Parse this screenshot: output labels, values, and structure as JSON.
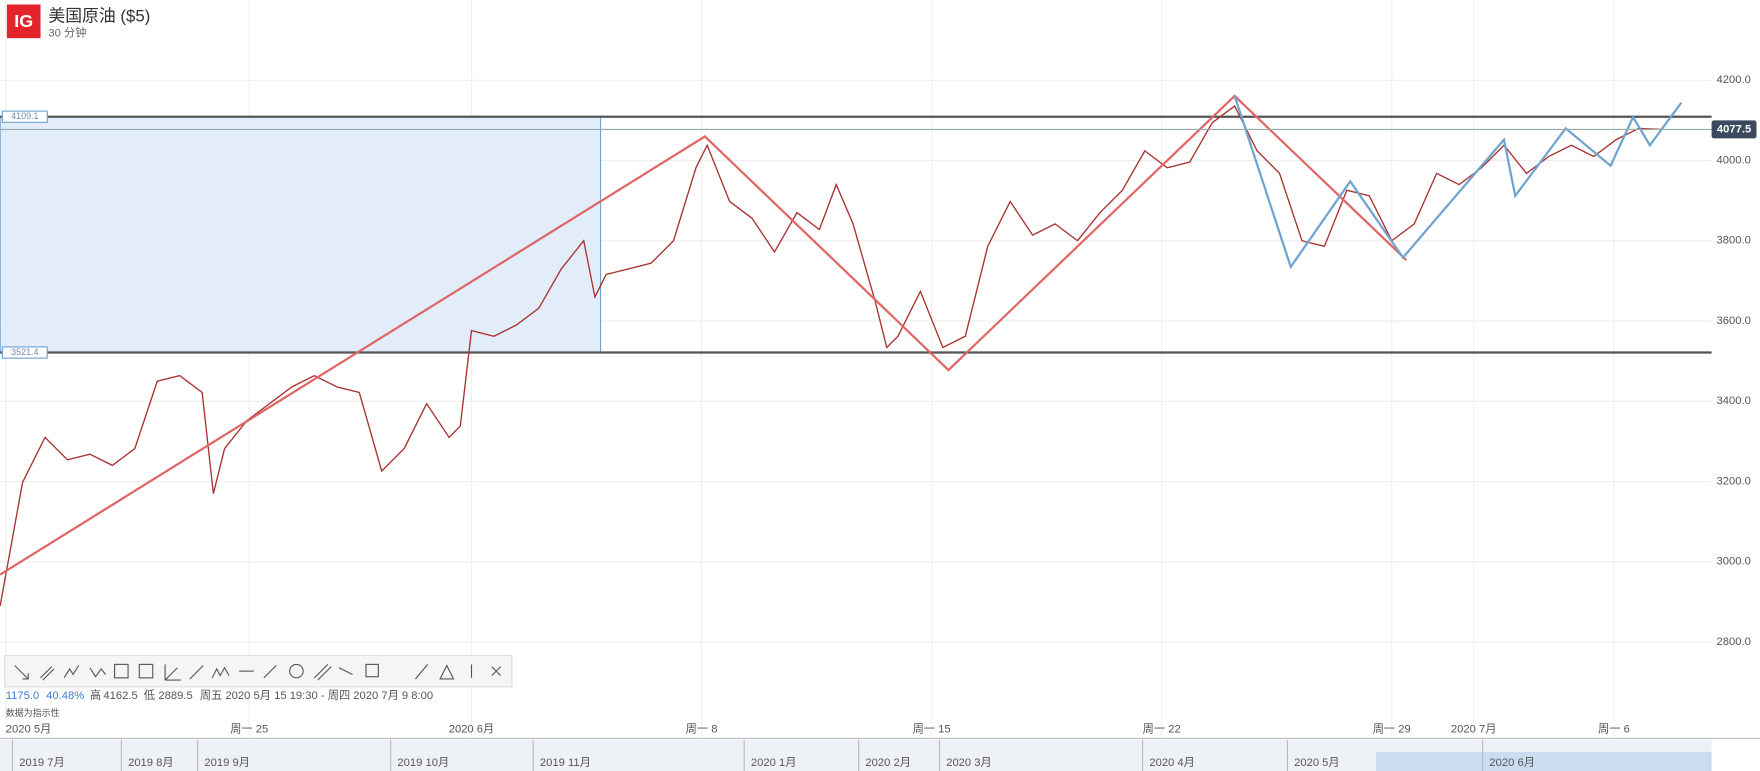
{
  "header": {
    "logo": "IG",
    "title": "美国原油 ($5)",
    "subtitle": "30 分钟"
  },
  "info": {
    "change": "1175.0",
    "change_pct": "40.48%",
    "high_label": "高",
    "high": "4162.5",
    "low_label": "低",
    "low": "2889.5",
    "range": "周五 2020 5月 15 19:30 - 周四 2020 7月 9 8:00",
    "note": "数据为指示性"
  },
  "navigator": [
    "2019 7月",
    "2019 8月",
    "2019 9月",
    "2019 10月",
    "2019 11月",
    "2020 1月",
    "2020 2月",
    "2020 3月",
    "2020 4月",
    "2020 5月",
    "2020 6月"
  ],
  "chart_data": {
    "type": "line",
    "color": "#a83232",
    "x": [
      0,
      20,
      40,
      60,
      80,
      100,
      120,
      140,
      160,
      180,
      190,
      200,
      220,
      240,
      260,
      280,
      300,
      320,
      340,
      360,
      380,
      400,
      410,
      420,
      440,
      460,
      480,
      500,
      520,
      530,
      540,
      560,
      580,
      600,
      620,
      630,
      650,
      670,
      690,
      710,
      730,
      745,
      760,
      780,
      790,
      800,
      820,
      840,
      860,
      880,
      900,
      920,
      940,
      960,
      980,
      1000,
      1020,
      1040,
      1060,
      1080,
      1100,
      1120,
      1140,
      1160,
      1180,
      1200,
      1220,
      1240,
      1260,
      1280,
      1300,
      1320,
      1340,
      1360,
      1380,
      1400,
      1420,
      1440,
      1460,
      1480
    ],
    "values": [
      2890,
      3198,
      3310,
      3254,
      3268,
      3240,
      3282,
      3450,
      3464,
      3422,
      3170,
      3282,
      3352,
      3394,
      3436,
      3464,
      3436,
      3422,
      3226,
      3282,
      3394,
      3310,
      3338,
      3576,
      3562,
      3590,
      3632,
      3730,
      3800,
      3660,
      3716,
      3730,
      3744,
      3800,
      3982,
      4038,
      3898,
      3856,
      3772,
      3870,
      3828,
      3940,
      3842,
      3646,
      3534,
      3562,
      3674,
      3534,
      3562,
      3786,
      3898,
      3814,
      3842,
      3800,
      3870,
      3926,
      4024,
      3982,
      3996,
      4094,
      4136,
      4024,
      3968,
      3800,
      3786,
      3926,
      3912,
      3800,
      3842,
      3968,
      3940,
      3982,
      4038,
      3968,
      4010,
      4038,
      4010,
      4052,
      4080,
      4077.5
    ],
    "xlim": [
      0,
      1525
    ],
    "ylim": [
      2610,
      4400
    ],
    "xticks": [
      {
        "value": 5,
        "label": "2020 5月"
      },
      {
        "value": 222,
        "label": "周一 25"
      },
      {
        "value": 420,
        "label": "2020 6月"
      },
      {
        "value": 625,
        "label": "周一 8"
      },
      {
        "value": 830,
        "label": "周一 15"
      },
      {
        "value": 1035,
        "label": "周一 22"
      },
      {
        "value": 1240,
        "label": "周一 29"
      },
      {
        "value": 1313,
        "label": "2020 7月"
      },
      {
        "value": 1438,
        "label": "周一 6"
      }
    ],
    "yticks": [
      {
        "value": 2800,
        "label": "2800.0"
      },
      {
        "value": 3000,
        "label": "3000.0"
      },
      {
        "value": 3200,
        "label": "3200.0"
      },
      {
        "value": 3400,
        "label": "3400.0"
      },
      {
        "value": 3600,
        "label": "3600.0"
      },
      {
        "value": 3800,
        "label": "3800.0"
      },
      {
        "value": 4000,
        "label": "4000.0"
      },
      {
        "value": 4200,
        "label": "4200.0"
      }
    ],
    "grid": true,
    "levels": [
      4109.1,
      3521.4
    ],
    "last_price": 4077.5,
    "drawings": [
      {
        "color": "#e06666",
        "x": [
          0,
          628,
          845,
          1100,
          1253
        ],
        "values": [
          2968,
          4060,
          3478,
          4161,
          3752
        ]
      },
      {
        "color": "#6fa3d0",
        "x": [
          1100,
          1150,
          1203,
          1250,
          1340,
          1350,
          1395,
          1435,
          1455,
          1470,
          1498
        ],
        "values": [
          4161,
          3735,
          3948,
          3758,
          4052,
          3912,
          4080,
          3987,
          4108,
          4038,
          4144
        ]
      }
    ]
  }
}
